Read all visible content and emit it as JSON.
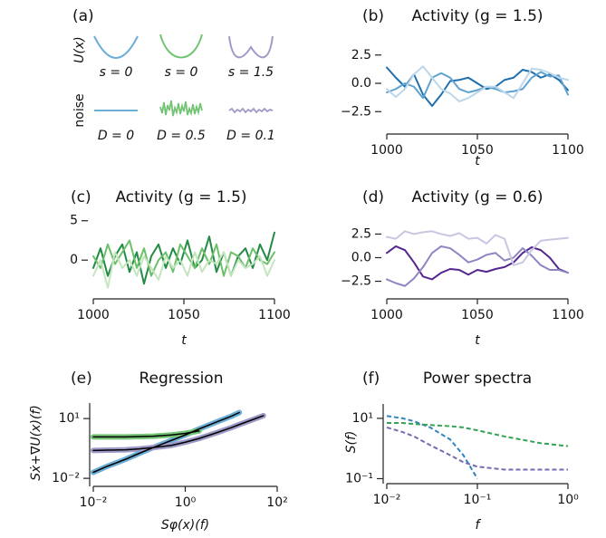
{
  "panel_a": {
    "panel_label": "(a)",
    "potential_label": "U(x)",
    "noise_label": "noise",
    "potential_params": [
      "s = 0",
      "s = 0",
      "s = 1.5"
    ],
    "noise_params": [
      "D = 0",
      "D = 0.5",
      "D = 0.1"
    ]
  },
  "chart_data": [
    {
      "type": "line",
      "panel_label": "(b)",
      "title": "Activity (g = 1.5)",
      "x_label": "t",
      "x": [
        1000,
        1005,
        1010,
        1015,
        1020,
        1025,
        1030,
        1035,
        1040,
        1045,
        1050,
        1055,
        1060,
        1065,
        1070,
        1075,
        1080,
        1085,
        1090,
        1095,
        1100
      ],
      "series": [
        {
          "color": "#1f6fae",
          "values": [
            1.4,
            0.5,
            -0.3,
            0.8,
            -1.0,
            -2.0,
            -1.0,
            0.2,
            0.3,
            0.5,
            0.0,
            -0.5,
            -0.3,
            0.3,
            0.5,
            1.2,
            1.0,
            0.5,
            0.8,
            0.3,
            -0.6
          ]
        },
        {
          "color": "#5fa2d0",
          "values": [
            -0.8,
            -0.5,
            0.0,
            -0.3,
            -1.3,
            0.5,
            0.9,
            0.5,
            -0.5,
            -0.8,
            -0.6,
            -0.3,
            -0.5,
            -0.8,
            -0.7,
            -0.5,
            0.5,
            1.0,
            0.6,
            0.7,
            -1.0
          ]
        },
        {
          "color": "#bcd7ea",
          "values": [
            -0.5,
            -1.2,
            -0.5,
            0.8,
            1.5,
            0.5,
            -0.5,
            -0.9,
            -1.6,
            -1.3,
            -0.8,
            -0.3,
            -0.3,
            -0.8,
            -1.3,
            0.0,
            1.3,
            1.2,
            0.9,
            0.5,
            0.3
          ]
        }
      ],
      "xlim": [
        1000,
        1100
      ],
      "xticks": [
        1000,
        1050,
        1100
      ],
      "ylim": [
        -3.2,
        3.2
      ],
      "yticks": [
        {
          "value": -2.5,
          "label": "−2.5"
        },
        {
          "value": 0,
          "label": "0.0"
        },
        2.5
      ]
    },
    {
      "type": "line",
      "panel_label": "(c)",
      "title": "Activity (g = 1.5)",
      "x_label": "t",
      "x": [
        1000,
        1004,
        1008,
        1012,
        1016,
        1020,
        1024,
        1028,
        1032,
        1036,
        1040,
        1044,
        1048,
        1052,
        1056,
        1060,
        1064,
        1068,
        1072,
        1076,
        1080,
        1084,
        1088,
        1092,
        1096,
        1100
      ],
      "series": [
        {
          "color": "#238b45",
          "values": [
            -1,
            1.5,
            -2,
            0.5,
            2,
            -1.5,
            1,
            -3,
            0.5,
            2,
            -1,
            1.5,
            -0.5,
            2.5,
            -1,
            0,
            3,
            -1.5,
            1,
            -2,
            0.5,
            1.5,
            -1,
            2,
            0,
            3.5
          ]
        },
        {
          "color": "#6cc06a",
          "values": [
            0.5,
            -1,
            2,
            -0.5,
            1,
            2.5,
            -1,
            1.5,
            -2,
            0,
            1,
            -1.5,
            2,
            0.5,
            -1,
            1.5,
            -0.5,
            2,
            -2,
            1,
            0.5,
            -1,
            1.5,
            0,
            -0.5,
            1
          ]
        },
        {
          "color": "#c3e6be",
          "values": [
            -2,
            0,
            -3.5,
            1,
            -1,
            0,
            -2,
            0.5,
            -1,
            -2.5,
            0.5,
            -1,
            0,
            -2,
            1,
            -1.5,
            0,
            -0.5,
            1,
            -2,
            0,
            -1,
            -0.5,
            0.5,
            -2,
            0
          ]
        }
      ],
      "xlim": [
        1000,
        1100
      ],
      "xticks": [
        1000,
        1050,
        1100
      ],
      "ylim": [
        -4,
        6
      ],
      "yticks": [
        0,
        5
      ]
    },
    {
      "type": "line",
      "panel_label": "(d)",
      "title": "Activity (g = 0.6)",
      "x_label": "t",
      "x": [
        1000,
        1005,
        1010,
        1015,
        1020,
        1025,
        1030,
        1035,
        1040,
        1045,
        1050,
        1055,
        1060,
        1065,
        1070,
        1075,
        1080,
        1085,
        1090,
        1095,
        1100
      ],
      "series": [
        {
          "color": "#54278f",
          "values": [
            0.5,
            1.2,
            0.8,
            -0.5,
            -2,
            -2.3,
            -1.6,
            -1.2,
            -1.3,
            -1.8,
            -1.3,
            -1.5,
            -1.2,
            -1.0,
            -0.5,
            0.5,
            1.1,
            0.8,
            0.0,
            -1.2,
            -1.6
          ]
        },
        {
          "color": "#8e86c1",
          "values": [
            -2.3,
            -2.7,
            -3.0,
            -2.2,
            -1.0,
            0.5,
            1.2,
            1.0,
            0.3,
            -0.5,
            -0.2,
            0.3,
            0.5,
            -0.3,
            0.0,
            1.0,
            0.2,
            -0.8,
            -1.3,
            -1.3,
            -1.6
          ]
        },
        {
          "color": "#c9c6e1",
          "values": [
            2.2,
            2.0,
            2.8,
            2.5,
            2.7,
            2.8,
            2.5,
            2.3,
            2.6,
            2.0,
            2.1,
            1.5,
            2.4,
            2.0,
            -0.8,
            -0.5,
            0.8,
            1.8,
            1.9,
            2.0,
            2.1
          ]
        }
      ],
      "xlim": [
        1000,
        1100
      ],
      "xticks": [
        1000,
        1050,
        1100
      ],
      "ylim": [
        -3.6,
        3.5
      ],
      "yticks": [
        {
          "value": -2.5,
          "label": "−2.5"
        },
        {
          "value": 0,
          "label": "0.0"
        },
        2.5
      ]
    },
    {
      "type": "line",
      "panel_label": "(e)",
      "title": "Regression",
      "x_label": "Sφ(x)(f)",
      "y_label": "Sẋ+∇U(x)(f)",
      "x": [
        0.01,
        0.02,
        0.05,
        0.1,
        0.2,
        0.5,
        1,
        2,
        5,
        10,
        15,
        30,
        50
      ],
      "series": [
        {
          "color": "#6baed6",
          "line_width": 6,
          "values": [
            0.02,
            0.04,
            0.09,
            0.18,
            0.35,
            0.8,
            1.5,
            3,
            7,
            13,
            20,
            null,
            null
          ]
        },
        {
          "color": "#74c476",
          "line_width": 6,
          "values": [
            1.2,
            1.2,
            1.2,
            1.25,
            1.3,
            1.5,
            1.8,
            2.4,
            null,
            null,
            null,
            null,
            null
          ]
        },
        {
          "color": "#9e9ac8",
          "line_width": 6,
          "values": [
            0.25,
            0.26,
            0.27,
            0.3,
            0.35,
            0.45,
            0.65,
            1.0,
            2,
            3.5,
            5,
            9,
            14
          ]
        },
        {
          "color": "#000000",
          "line_width": 1.5,
          "values": [
            0.02,
            0.04,
            0.09,
            0.18,
            0.35,
            0.8,
            1.5,
            3,
            7,
            13,
            20,
            null,
            null
          ]
        },
        {
          "color": "#000000",
          "line_width": 1.5,
          "values": [
            1.2,
            1.2,
            1.2,
            1.25,
            1.3,
            1.5,
            1.8,
            2.4,
            null,
            null,
            null,
            null,
            null
          ]
        },
        {
          "color": "#000000",
          "line_width": 1.5,
          "values": [
            0.25,
            0.26,
            0.27,
            0.3,
            0.35,
            0.45,
            0.65,
            1.0,
            2,
            3.5,
            5,
            9,
            14
          ]
        }
      ],
      "xscale": "log",
      "yscale": "log",
      "xlim": [
        0.01,
        100
      ],
      "xticks": [
        {
          "value": 0.01,
          "label": "10⁻²"
        },
        {
          "value": 1,
          "label": "10⁰"
        },
        {
          "value": 100,
          "label": "10²"
        }
      ],
      "ylim": [
        0.006,
        60
      ],
      "yticks": [
        {
          "value": 0.01,
          "label": "10⁻²"
        },
        {
          "value": 10,
          "label": "10¹"
        }
      ]
    },
    {
      "type": "line",
      "panel_label": "(f)",
      "title": "Power spectra",
      "x_label": "f",
      "y_label": "S(f)",
      "x": [
        0.01,
        0.015,
        0.02,
        0.03,
        0.05,
        0.07,
        0.1,
        0.2,
        0.5,
        1
      ],
      "series": [
        {
          "color": "#3182bd",
          "dashed": true,
          "values": [
            12,
            10,
            8,
            5,
            2,
            0.6,
            0.1,
            null,
            null,
            null
          ]
        },
        {
          "color": "#31a354",
          "dashed": true,
          "values": [
            7,
            7,
            6.5,
            6,
            5.5,
            5,
            4,
            2.5,
            1.5,
            1.2
          ]
        },
        {
          "color": "#756bb1",
          "dashed": true,
          "values": [
            5,
            3.5,
            2.5,
            1.3,
            0.6,
            0.35,
            0.25,
            0.2,
            0.2,
            0.2
          ]
        }
      ],
      "xscale": "log",
      "yscale": "log",
      "xlim": [
        0.01,
        1
      ],
      "xticks": [
        {
          "value": 0.01,
          "label": "10⁻²"
        },
        {
          "value": 0.1,
          "label": "10⁻¹"
        },
        {
          "value": 1,
          "label": "10⁰"
        }
      ],
      "ylim": [
        0.09,
        30
      ],
      "yticks": [
        {
          "value": 0.1,
          "label": "10⁻¹"
        },
        {
          "value": 10,
          "label": "10¹"
        }
      ]
    }
  ]
}
